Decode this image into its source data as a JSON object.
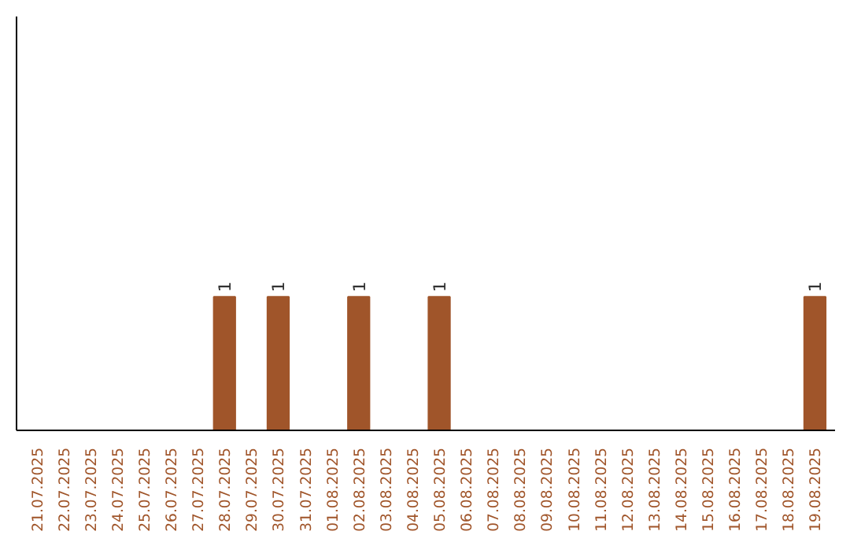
{
  "chart_data": {
    "type": "bar",
    "categories": [
      "21.07.2025",
      "22.07.2025",
      "23.07.2025",
      "24.07.2025",
      "25.07.2025",
      "26.07.2025",
      "27.07.2025",
      "28.07.2025",
      "29.07.2025",
      "30.07.2025",
      "31.07.2025",
      "01.08.2025",
      "02.08.2025",
      "03.08.2025",
      "04.08.2025",
      "05.08.2025",
      "06.08.2025",
      "07.08.2025",
      "08.08.2025",
      "09.08.2025",
      "10.08.2025",
      "11.08.2025",
      "12.08.2025",
      "13.08.2025",
      "14.08.2025",
      "15.08.2025",
      "16.08.2025",
      "17.08.2025",
      "18.08.2025",
      "19.08.2025"
    ],
    "values": [
      0,
      0,
      0,
      0,
      0,
      0,
      0,
      1,
      0,
      1,
      0,
      0,
      1,
      0,
      0,
      1,
      0,
      0,
      0,
      0,
      0,
      0,
      0,
      0,
      0,
      0,
      0,
      0,
      0,
      1
    ],
    "value_labels": [
      null,
      null,
      null,
      null,
      null,
      null,
      null,
      "1",
      null,
      "1",
      null,
      null,
      "1",
      null,
      null,
      "1",
      null,
      null,
      null,
      null,
      null,
      null,
      null,
      null,
      null,
      null,
      null,
      null,
      null,
      "1"
    ],
    "color": "#a0552a"
  }
}
